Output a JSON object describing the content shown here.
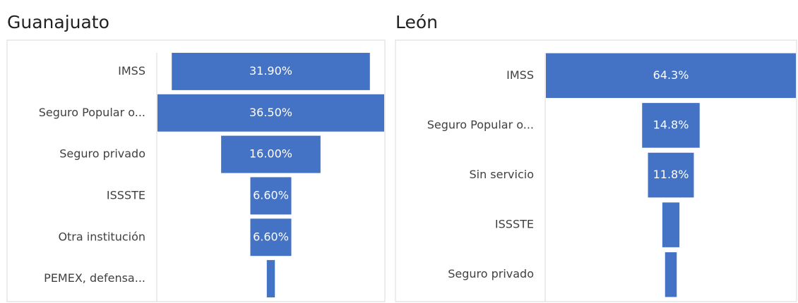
{
  "chart_data": [
    {
      "type": "funnel",
      "title": "Guanajuato",
      "color": "#4472c4",
      "categories": [
        "IMSS",
        "Seguro Popular o...",
        "Seguro privado",
        "ISSSTE",
        "Otra institución",
        "PEMEX, defensa..."
      ],
      "values": [
        31.9,
        36.5,
        16.0,
        6.6,
        6.6,
        1.3
      ],
      "value_labels": [
        "31.90%",
        "36.50%",
        "16.00%",
        "6.60%",
        "6.60%",
        null
      ]
    },
    {
      "type": "funnel",
      "title": "León",
      "color": "#4472c4",
      "categories": [
        "IMSS",
        "Seguro Popular o...",
        "Sin servicio",
        "ISSSTE",
        "Seguro privado"
      ],
      "values": [
        64.3,
        14.8,
        11.8,
        4.4,
        3.0
      ],
      "value_labels": [
        "64.3%",
        "14.8%",
        "11.8%",
        null,
        null
      ]
    }
  ]
}
